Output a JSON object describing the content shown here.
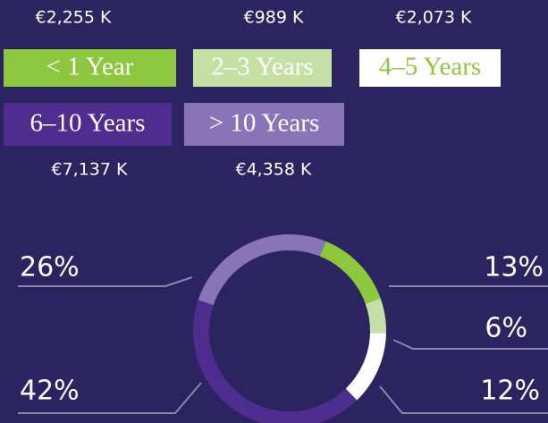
{
  "chart_data": {
    "type": "donut",
    "categories": [
      "< 1 Year",
      "2–3 Years",
      "4–5 Years",
      "6–10 Years",
      "> 10 Years"
    ],
    "values": [
      2255,
      989,
      2073,
      7137,
      4358
    ],
    "value_labels": [
      "€2,255 K",
      "€989 K",
      "€2,073 K",
      "€7,137 K",
      "€4,358 K"
    ],
    "percents": [
      13,
      6,
      12,
      42,
      26
    ],
    "percent_labels": [
      "13%",
      "6%",
      "12%",
      "42%",
      "26%"
    ],
    "colors": [
      "#8dc63f",
      "#c5e0a5",
      "#ffffff",
      "#4f2d8f",
      "#8a74b8"
    ]
  }
}
